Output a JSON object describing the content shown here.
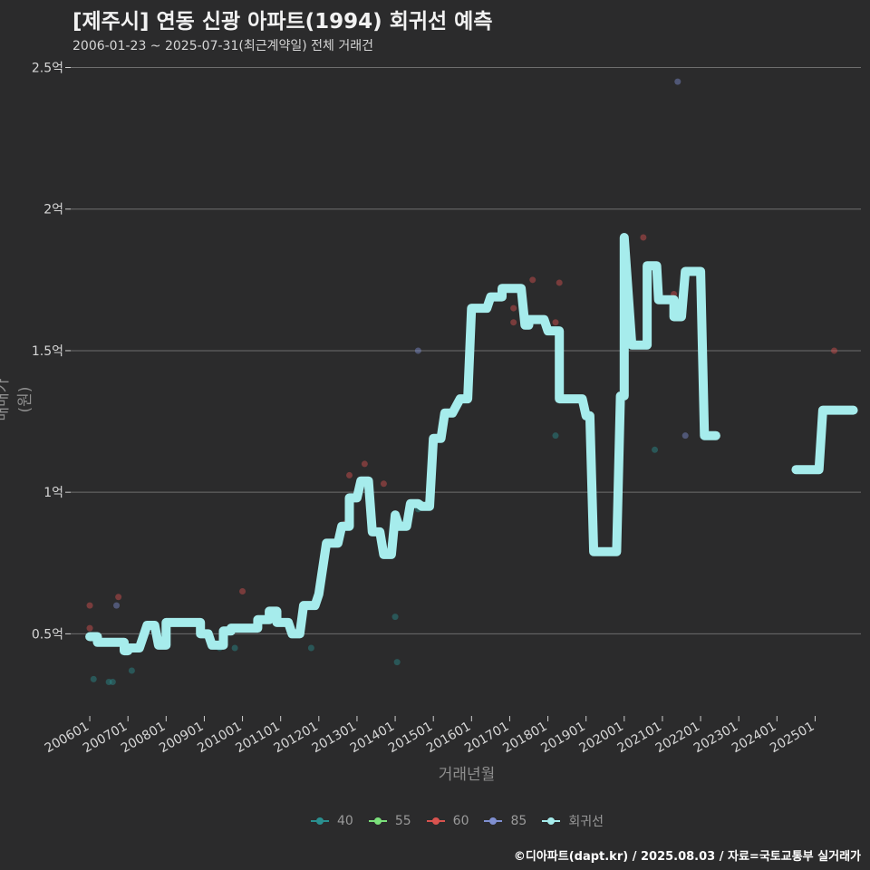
{
  "title": "[제주시] 연동 신광 아파트(1994) 회귀선 예측",
  "subtitle": "2006-01-23 ~ 2025-07-31(최근계약일) 전체 거래건",
  "footer": "©디아파트(dapt.kr) / 2025.08.03 / 자료=국토교통부 실거래가",
  "chart_data": {
    "type": "scatter",
    "xlabel": "거래년월",
    "ylabel": "매매가(원)",
    "x_ticks": [
      "200601",
      "200701",
      "200801",
      "200901",
      "201001",
      "201101",
      "201201",
      "201301",
      "201401",
      "201501",
      "201601",
      "201701",
      "201801",
      "201901",
      "202001",
      "202101",
      "202201",
      "202301",
      "202401",
      "202501"
    ],
    "y_ticks": [
      0.5,
      1,
      1.5,
      2,
      2.5
    ],
    "y_tick_labels": [
      "0.5억",
      "1억",
      "1.5억",
      "2억",
      "2.5억"
    ],
    "ylim": [
      0.21,
      2.54
    ],
    "xlim": [
      2005.5,
      2026.2
    ],
    "grid": true,
    "legend_position": "bottom",
    "series": [
      {
        "name": "40",
        "color": "#2a8f8f",
        "points": [
          [
            2006.1,
            0.34
          ],
          [
            2006.5,
            0.33
          ],
          [
            2006.6,
            0.33
          ],
          [
            2007.1,
            0.37
          ],
          [
            2009.4,
            0.45
          ],
          [
            2009.8,
            0.45
          ],
          [
            2011.8,
            0.45
          ],
          [
            2014.0,
            0.56
          ],
          [
            2014.05,
            0.4
          ],
          [
            2014.6,
            0.94
          ],
          [
            2018.2,
            1.2
          ],
          [
            2020.8,
            1.15
          ],
          [
            2025.0,
            1.08
          ]
        ]
      },
      {
        "name": "55",
        "color": "#7be07b",
        "points": []
      },
      {
        "name": "60",
        "color": "#d9534f",
        "points": [
          [
            2006.0,
            0.6
          ],
          [
            2006.0,
            0.52
          ],
          [
            2006.75,
            0.63
          ],
          [
            2010.0,
            0.65
          ],
          [
            2012.7,
            0.89
          ],
          [
            2012.8,
            1.06
          ],
          [
            2013.2,
            1.1
          ],
          [
            2013.7,
            1.03
          ],
          [
            2014.9,
            1.0
          ],
          [
            2017.1,
            1.65
          ],
          [
            2017.1,
            1.6
          ],
          [
            2017.6,
            1.75
          ],
          [
            2018.2,
            1.6
          ],
          [
            2018.3,
            1.74
          ],
          [
            2020.5,
            1.9
          ],
          [
            2021.3,
            1.7
          ],
          [
            2025.5,
            1.5
          ]
        ]
      },
      {
        "name": "85",
        "color": "#7f8fd0",
        "points": [
          [
            2006.7,
            0.6
          ],
          [
            2014.6,
            1.5
          ],
          [
            2021.4,
            2.45
          ],
          [
            2021.6,
            1.2
          ]
        ]
      }
    ],
    "regression": {
      "name": "회귀선",
      "color": "#a6ecec",
      "segments": [
        [
          [
            2006.0,
            0.49
          ],
          [
            2006.2,
            0.49
          ],
          [
            2006.2,
            0.47
          ],
          [
            2006.9,
            0.47
          ],
          [
            2006.9,
            0.44
          ],
          [
            2007.0,
            0.44
          ],
          [
            2007.0,
            0.45
          ],
          [
            2007.3,
            0.45
          ],
          [
            2007.5,
            0.53
          ],
          [
            2007.7,
            0.53
          ],
          [
            2007.8,
            0.46
          ],
          [
            2008.0,
            0.46
          ],
          [
            2008.0,
            0.54
          ],
          [
            2008.9,
            0.54
          ],
          [
            2008.9,
            0.5
          ],
          [
            2009.1,
            0.5
          ],
          [
            2009.2,
            0.46
          ],
          [
            2009.5,
            0.46
          ],
          [
            2009.5,
            0.51
          ],
          [
            2009.7,
            0.51
          ],
          [
            2009.7,
            0.52
          ],
          [
            2010.4,
            0.52
          ],
          [
            2010.4,
            0.55
          ],
          [
            2010.7,
            0.55
          ],
          [
            2010.7,
            0.58
          ],
          [
            2010.9,
            0.58
          ],
          [
            2010.9,
            0.54
          ],
          [
            2011.2,
            0.54
          ],
          [
            2011.3,
            0.5
          ],
          [
            2011.5,
            0.5
          ],
          [
            2011.6,
            0.6
          ],
          [
            2011.9,
            0.6
          ],
          [
            2012.0,
            0.64
          ],
          [
            2012.2,
            0.82
          ],
          [
            2012.5,
            0.82
          ],
          [
            2012.6,
            0.88
          ],
          [
            2012.8,
            0.88
          ],
          [
            2012.8,
            0.98
          ],
          [
            2013.0,
            0.98
          ],
          [
            2013.1,
            1.04
          ],
          [
            2013.3,
            1.04
          ],
          [
            2013.4,
            0.86
          ],
          [
            2013.6,
            0.86
          ],
          [
            2013.7,
            0.78
          ],
          [
            2013.9,
            0.78
          ],
          [
            2014.0,
            0.92
          ],
          [
            2014.1,
            0.88
          ],
          [
            2014.3,
            0.88
          ],
          [
            2014.4,
            0.96
          ],
          [
            2014.6,
            0.96
          ],
          [
            2014.7,
            0.95
          ],
          [
            2014.9,
            0.95
          ],
          [
            2015.0,
            1.19
          ],
          [
            2015.2,
            1.19
          ],
          [
            2015.3,
            1.28
          ],
          [
            2015.5,
            1.28
          ],
          [
            2015.7,
            1.33
          ],
          [
            2015.9,
            1.33
          ],
          [
            2016.0,
            1.65
          ],
          [
            2016.4,
            1.65
          ],
          [
            2016.5,
            1.69
          ],
          [
            2016.8,
            1.69
          ],
          [
            2016.8,
            1.72
          ],
          [
            2017.3,
            1.72
          ],
          [
            2017.4,
            1.59
          ],
          [
            2017.5,
            1.59
          ],
          [
            2017.5,
            1.61
          ],
          [
            2017.9,
            1.61
          ],
          [
            2018.0,
            1.57
          ],
          [
            2018.3,
            1.57
          ],
          [
            2018.3,
            1.33
          ],
          [
            2018.9,
            1.33
          ],
          [
            2019.0,
            1.27
          ],
          [
            2019.1,
            1.27
          ],
          [
            2019.2,
            0.79
          ],
          [
            2019.8,
            0.79
          ],
          [
            2019.9,
            1.34
          ],
          [
            2020.0,
            1.34
          ],
          [
            2020.0,
            1.9
          ],
          [
            2020.2,
            1.52
          ],
          [
            2020.6,
            1.52
          ],
          [
            2020.6,
            1.8
          ],
          [
            2020.85,
            1.8
          ],
          [
            2020.9,
            1.68
          ],
          [
            2021.3,
            1.68
          ],
          [
            2021.3,
            1.62
          ],
          [
            2021.5,
            1.62
          ],
          [
            2021.6,
            1.78
          ],
          [
            2022.0,
            1.78
          ],
          [
            2022.1,
            1.2
          ],
          [
            2022.4,
            1.2
          ]
        ],
        [
          [
            2024.5,
            1.08
          ],
          [
            2025.1,
            1.08
          ],
          [
            2025.2,
            1.29
          ],
          [
            2026.0,
            1.29
          ]
        ]
      ]
    }
  }
}
